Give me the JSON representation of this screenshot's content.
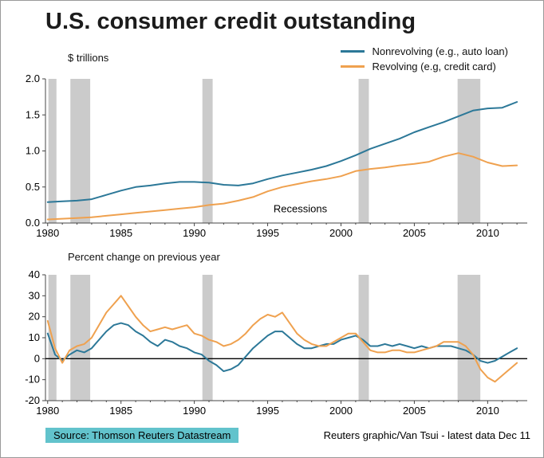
{
  "title": "U.S. consumer credit outstanding",
  "footer": {
    "source": "Source: Thomson Reuters Datastream",
    "credit": "Reuters graphic/Van Tsui - latest data Dec 11",
    "source_bg": "#62c3cc"
  },
  "chart_data": [
    {
      "type": "line",
      "panel": "top",
      "ylabel": "$ trillions",
      "xlim": [
        1979.85,
        2012.7
      ],
      "ylim": [
        0,
        2
      ],
      "yticks": [
        0,
        0.5,
        1,
        1.5,
        2
      ],
      "ytick_labels": [
        "0.0",
        "0.5",
        "1.0",
        "1.5",
        "2.0"
      ],
      "xticks": [
        1980,
        1985,
        1990,
        1995,
        2000,
        2005,
        2010
      ],
      "grid": false,
      "legend_position": "top-right",
      "axis_color": "#444444",
      "recession_color": "#cbcbcb",
      "recessions": [
        [
          1980.05,
          1980.6
        ],
        [
          1981.55,
          1982.9
        ],
        [
          1990.55,
          1991.25
        ],
        [
          2001.2,
          2001.9
        ],
        [
          2007.95,
          2009.5
        ]
      ],
      "annotation": {
        "text": "Recessions",
        "x": 1995.4,
        "y": 0.15
      },
      "zero_line": false,
      "series": [
        {
          "name": "Nonrevolving (e.g., auto loan)",
          "color": "#2c7898",
          "x": [
            1980,
            1981,
            1982,
            1983,
            1984,
            1985,
            1986,
            1987,
            1988,
            1989,
            1990,
            1991,
            1992,
            1993,
            1994,
            1995,
            1996,
            1997,
            1998,
            1999,
            2000,
            2001,
            2002,
            2003,
            2004,
            2005,
            2006,
            2007,
            2008,
            2009,
            2010,
            2011,
            2012
          ],
          "y": [
            0.29,
            0.3,
            0.31,
            0.33,
            0.39,
            0.45,
            0.5,
            0.52,
            0.55,
            0.57,
            0.57,
            0.56,
            0.53,
            0.52,
            0.55,
            0.61,
            0.66,
            0.7,
            0.74,
            0.79,
            0.86,
            0.94,
            1.03,
            1.1,
            1.17,
            1.26,
            1.33,
            1.4,
            1.48,
            1.56,
            1.59,
            1.6,
            1.68
          ]
        },
        {
          "name": "Revolving (e.g, credit card)",
          "color": "#efa14f",
          "x": [
            1980,
            1981,
            1982,
            1983,
            1984,
            1985,
            1986,
            1987,
            1988,
            1989,
            1990,
            1991,
            1992,
            1993,
            1994,
            1995,
            1996,
            1997,
            1998,
            1999,
            2000,
            2001,
            2002,
            2003,
            2004,
            2005,
            2006,
            2007,
            2008,
            2009,
            2010,
            2011,
            2012
          ],
          "y": [
            0.05,
            0.06,
            0.07,
            0.08,
            0.1,
            0.12,
            0.14,
            0.16,
            0.18,
            0.2,
            0.22,
            0.25,
            0.27,
            0.31,
            0.36,
            0.44,
            0.5,
            0.54,
            0.58,
            0.61,
            0.65,
            0.72,
            0.75,
            0.77,
            0.8,
            0.82,
            0.85,
            0.92,
            0.97,
            0.92,
            0.84,
            0.79,
            0.8
          ]
        }
      ]
    },
    {
      "type": "line",
      "panel": "bottom",
      "title": "Percent change on previous year",
      "xlim": [
        1979.85,
        2012.7
      ],
      "ylim": [
        -20,
        40
      ],
      "yticks": [
        -20,
        -10,
        0,
        10,
        20,
        30,
        40
      ],
      "ytick_labels": [
        "-20",
        "-10",
        "0",
        "10",
        "20",
        "30",
        "40"
      ],
      "xticks": [
        1980,
        1985,
        1990,
        1995,
        2000,
        2005,
        2010
      ],
      "grid": false,
      "axis_color": "#444444",
      "recession_color": "#cbcbcb",
      "recessions": [
        [
          1980.05,
          1980.6
        ],
        [
          1981.55,
          1982.9
        ],
        [
          1990.55,
          1991.25
        ],
        [
          2001.2,
          2001.9
        ],
        [
          2007.95,
          2009.5
        ]
      ],
      "zero_line": true,
      "series": [
        {
          "name": "Nonrevolving (e.g., auto loan)",
          "color": "#2c7898",
          "x": [
            1980,
            1980.5,
            1981,
            1981.5,
            1982,
            1982.5,
            1983,
            1983.5,
            1984,
            1984.5,
            1985,
            1985.5,
            1986,
            1986.5,
            1987,
            1987.5,
            1988,
            1988.5,
            1989,
            1989.5,
            1990,
            1990.5,
            1991,
            1991.5,
            1992,
            1992.5,
            1993,
            1993.5,
            1994,
            1994.5,
            1995,
            1995.5,
            1996,
            1996.5,
            1997,
            1997.5,
            1998,
            1998.5,
            1999,
            1999.5,
            2000,
            2000.5,
            2001,
            2001.5,
            2002,
            2002.5,
            2003,
            2003.5,
            2004,
            2004.5,
            2005,
            2005.5,
            2006,
            2006.5,
            2007,
            2007.5,
            2008,
            2008.5,
            2009,
            2009.5,
            2010,
            2010.5,
            2011,
            2011.5,
            2012
          ],
          "y": [
            12,
            2,
            -1,
            2,
            4,
            3,
            5,
            9,
            13,
            16,
            17,
            16,
            13,
            11,
            8,
            6,
            9,
            8,
            6,
            5,
            3,
            2,
            -1,
            -3,
            -6,
            -5,
            -3,
            1,
            5,
            8,
            11,
            13,
            13,
            10,
            7,
            5,
            5,
            6,
            7,
            7,
            9,
            10,
            11,
            9,
            6,
            6,
            7,
            6,
            7,
            6,
            5,
            6,
            5,
            6,
            6,
            6,
            5,
            4,
            2,
            -1,
            -2,
            -1,
            1,
            3,
            5
          ]
        },
        {
          "name": "Revolving (e.g, credit card)",
          "color": "#efa14f",
          "x": [
            1980,
            1980.5,
            1981,
            1981.5,
            1982,
            1982.5,
            1983,
            1983.5,
            1984,
            1984.5,
            1985,
            1985.5,
            1986,
            1986.5,
            1987,
            1987.5,
            1988,
            1988.5,
            1989,
            1989.5,
            1990,
            1990.5,
            1991,
            1991.5,
            1992,
            1992.5,
            1993,
            1993.5,
            1994,
            1994.5,
            1995,
            1995.5,
            1996,
            1996.5,
            1997,
            1997.5,
            1998,
            1998.5,
            1999,
            1999.5,
            2000,
            2000.5,
            2001,
            2001.5,
            2002,
            2002.5,
            2003,
            2003.5,
            2004,
            2004.5,
            2005,
            2005.5,
            2006,
            2006.5,
            2007,
            2007.5,
            2008,
            2008.5,
            2009,
            2009.5,
            2010,
            2010.5,
            2011,
            2011.5,
            2012
          ],
          "y": [
            18,
            5,
            -2,
            4,
            6,
            7,
            10,
            16,
            22,
            26,
            30,
            25,
            20,
            16,
            13,
            14,
            15,
            14,
            15,
            16,
            12,
            11,
            9,
            8,
            6,
            7,
            9,
            12,
            16,
            19,
            21,
            20,
            22,
            17,
            12,
            9,
            7,
            6,
            6,
            8,
            10,
            12,
            12,
            8,
            4,
            3,
            3,
            4,
            4,
            3,
            3,
            4,
            5,
            6,
            8,
            8,
            8,
            6,
            2,
            -5,
            -9,
            -11,
            -8,
            -5,
            -2
          ]
        }
      ]
    }
  ]
}
